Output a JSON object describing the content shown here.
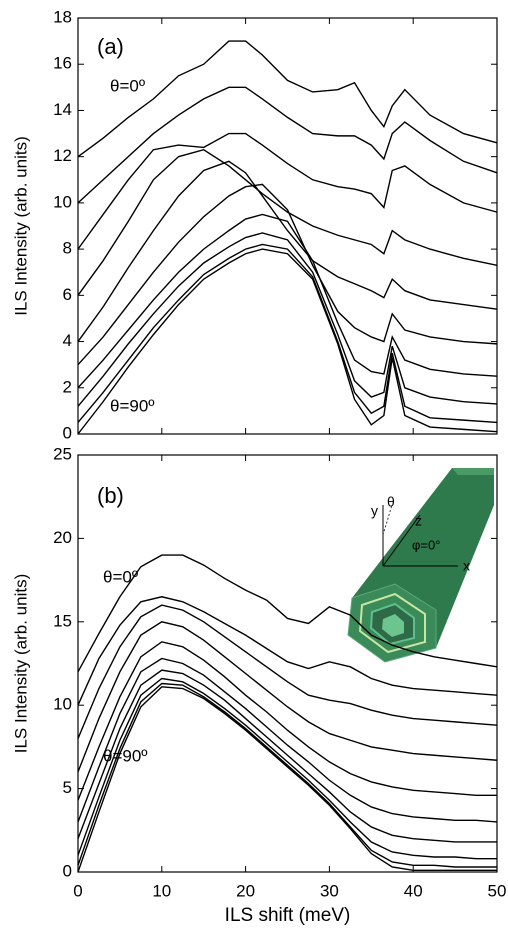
{
  "chart_data": [
    {
      "type": "line",
      "ylabel": "ILS Intensity (arb. units)",
      "annotations": [
        "(a)",
        "θ=0º",
        "θ=90º"
      ],
      "xlim": [
        0,
        50
      ],
      "xticks": [
        0,
        10,
        20,
        30,
        40,
        50
      ],
      "show_xtick_labels": false,
      "ylim": [
        0,
        18
      ],
      "yticks": [
        0,
        2,
        4,
        6,
        8,
        10,
        12,
        14,
        16,
        18
      ],
      "x": [
        0,
        3,
        6,
        9,
        12,
        15,
        18,
        20,
        22,
        25,
        28,
        31,
        33,
        35,
        36.5,
        37.5,
        39,
        42,
        46,
        50
      ],
      "series": [
        {
          "color": "#000000",
          "values": [
            12,
            12.8,
            13.7,
            14.5,
            15.5,
            16.0,
            17.0,
            17.0,
            16.4,
            15.3,
            14.8,
            14.9,
            15.2,
            14.0,
            13.3,
            14.2,
            14.9,
            13.8,
            13.0,
            12.6
          ]
        },
        {
          "color": "#000000",
          "values": [
            10,
            11,
            12,
            13,
            13.8,
            14.5,
            15.0,
            15.0,
            14.5,
            13.7,
            13.0,
            12.9,
            12.9,
            12.5,
            11.9,
            13.0,
            13.5,
            12.7,
            11.8,
            11.3
          ]
        },
        {
          "color": "#000000",
          "values": [
            8,
            9.5,
            11.0,
            12.3,
            12.5,
            12.4,
            13.0,
            13.0,
            12.5,
            11.7,
            11.0,
            10.7,
            10.6,
            10.4,
            9.8,
            11.4,
            11.6,
            10.8,
            10.0,
            9.6
          ]
        },
        {
          "color": "#000000",
          "values": [
            6,
            7.5,
            9.2,
            11.0,
            12.0,
            12.3,
            11.6,
            11.0,
            10.4,
            9.6,
            9.0,
            8.6,
            8.4,
            8.2,
            7.8,
            8.8,
            8.4,
            8.0,
            7.6,
            7.3
          ]
        },
        {
          "color": "#000000",
          "values": [
            4,
            5.5,
            7.2,
            8.8,
            10.3,
            11.4,
            11.8,
            11.3,
            10.3,
            8.8,
            7.5,
            6.8,
            6.5,
            6.2,
            5.9,
            6.7,
            6.2,
            5.8,
            5.6,
            5.4
          ]
        },
        {
          "color": "#000000",
          "values": [
            3,
            4.2,
            5.6,
            7.0,
            8.3,
            9.4,
            10.3,
            10.7,
            10.8,
            9.7,
            7.3,
            5.3,
            4.6,
            4.2,
            4.0,
            5.2,
            4.5,
            4.2,
            4.0,
            3.9
          ]
        },
        {
          "color": "#000000",
          "values": [
            2,
            3.2,
            4.5,
            5.8,
            7.0,
            8.0,
            8.8,
            9.3,
            9.5,
            9.2,
            7.5,
            4.8,
            3.2,
            2.7,
            2.6,
            4.2,
            3.2,
            2.8,
            2.6,
            2.5
          ]
        },
        {
          "color": "#000000",
          "values": [
            1.2,
            2.5,
            3.9,
            5.2,
            6.4,
            7.4,
            8.1,
            8.5,
            8.7,
            8.4,
            7.0,
            4.3,
            2.3,
            1.6,
            1.8,
            3.8,
            2.0,
            1.6,
            1.4,
            1.3
          ]
        },
        {
          "color": "#000000",
          "values": [
            0.5,
            1.8,
            3.2,
            4.6,
            5.8,
            6.9,
            7.6,
            8.0,
            8.2,
            8.0,
            6.8,
            4.0,
            1.8,
            0.9,
            1.2,
            3.5,
            1.2,
            0.7,
            0.6,
            0.5
          ]
        },
        {
          "color": "#000000",
          "values": [
            0,
            1.4,
            2.9,
            4.3,
            5.6,
            6.7,
            7.4,
            7.8,
            8.0,
            7.8,
            6.7,
            3.9,
            1.5,
            0.4,
            0.8,
            3.3,
            0.8,
            0.3,
            0.2,
            0.1
          ]
        }
      ]
    },
    {
      "type": "line",
      "xlabel": "ILS shift (meV)",
      "ylabel": "ILS Intensity (arb. units)",
      "annotations": [
        "(b)",
        "θ=0º",
        "θ=90º",
        "y",
        "θ",
        "z",
        "φ=0°",
        "x"
      ],
      "xlim": [
        0,
        50
      ],
      "xticks": [
        0,
        10,
        20,
        30,
        40,
        50
      ],
      "show_xtick_labels": true,
      "ylim": [
        0,
        25
      ],
      "yticks": [
        0,
        5,
        10,
        15,
        20,
        25
      ],
      "x": [
        0,
        2.5,
        5,
        7.5,
        10,
        12.5,
        15,
        17.5,
        20,
        22.5,
        25,
        27.5,
        30,
        32.5,
        35,
        37.5,
        40,
        42.5,
        45,
        47.5,
        50
      ],
      "series": [
        {
          "color": "#000000",
          "values": [
            12,
            14.3,
            16.5,
            18.3,
            19.0,
            19.0,
            18.4,
            17.6,
            16.9,
            16.3,
            15.2,
            14.9,
            15.9,
            15.4,
            14.2,
            13.6,
            13.2,
            12.9,
            12.7,
            12.5,
            12.3
          ]
        },
        {
          "color": "#000000",
          "values": [
            10,
            12.8,
            14.8,
            16.2,
            16.5,
            16.2,
            15.6,
            14.9,
            14.2,
            13.4,
            12.6,
            12.2,
            12.6,
            12.3,
            11.6,
            11.2,
            11.0,
            10.9,
            10.8,
            10.7,
            10.6
          ]
        },
        {
          "color": "#000000",
          "values": [
            8,
            11,
            13.5,
            15.3,
            16.0,
            15.7,
            15.0,
            14.1,
            13.2,
            12.3,
            11.4,
            10.6,
            10.3,
            10.1,
            9.7,
            9.4,
            9.2,
            9.1,
            9.0,
            8.9,
            8.8
          ]
        },
        {
          "color": "#000000",
          "values": [
            6,
            9.2,
            12.0,
            14.2,
            15.0,
            14.7,
            13.9,
            12.9,
            11.9,
            10.9,
            9.9,
            9.0,
            8.3,
            7.9,
            7.5,
            7.3,
            7.1,
            7.0,
            6.9,
            6.8,
            6.7
          ]
        },
        {
          "color": "#000000",
          "values": [
            4.3,
            7.5,
            10.5,
            12.9,
            13.8,
            13.5,
            12.7,
            11.7,
            10.6,
            9.6,
            8.5,
            7.5,
            6.6,
            5.9,
            5.4,
            5.1,
            4.9,
            4.8,
            4.7,
            4.6,
            4.6
          ]
        },
        {
          "color": "#000000",
          "values": [
            3,
            6.3,
            9.5,
            12.0,
            12.8,
            12.5,
            11.8,
            10.8,
            9.8,
            8.7,
            7.6,
            6.6,
            5.5,
            4.6,
            3.9,
            3.5,
            3.3,
            3.2,
            3.1,
            3.1,
            3.0
          ]
        },
        {
          "color": "#000000",
          "values": [
            2,
            5.3,
            8.6,
            11.2,
            12.1,
            11.9,
            11.2,
            10.3,
            9.2,
            8.1,
            7.0,
            5.9,
            4.8,
            3.6,
            2.7,
            2.2,
            2.0,
            1.9,
            1.8,
            1.8,
            1.8
          ]
        },
        {
          "color": "#000000",
          "values": [
            1,
            4.5,
            7.9,
            10.6,
            11.6,
            11.4,
            10.7,
            9.8,
            8.8,
            7.7,
            6.6,
            5.5,
            4.3,
            3.0,
            1.8,
            1.2,
            1.0,
            0.9,
            0.9,
            0.8,
            0.8
          ]
        },
        {
          "color": "#000000",
          "values": [
            0.4,
            4.0,
            7.4,
            10.2,
            11.3,
            11.2,
            10.5,
            9.6,
            8.6,
            7.5,
            6.4,
            5.3,
            4.1,
            2.7,
            1.3,
            0.6,
            0.4,
            0.4,
            0.3,
            0.3,
            0.3
          ]
        },
        {
          "color": "#000000",
          "values": [
            0,
            3.6,
            7.1,
            9.9,
            11.1,
            11.0,
            10.4,
            9.5,
            8.5,
            7.4,
            6.3,
            5.2,
            4.0,
            2.6,
            1.1,
            0.3,
            0.1,
            0.1,
            0.1,
            0.1,
            0.1
          ]
        }
      ]
    }
  ]
}
